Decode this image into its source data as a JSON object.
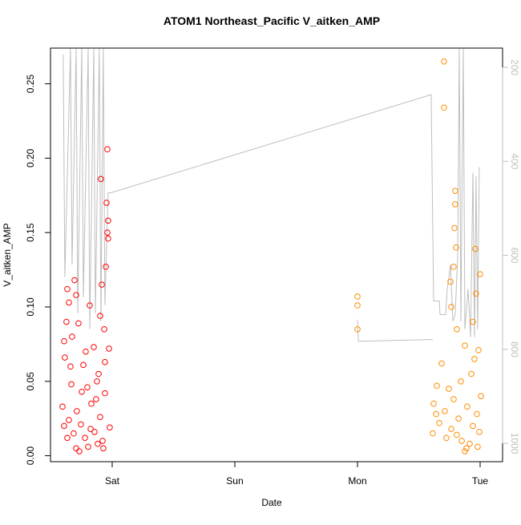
{
  "chart_data": {
    "type": "scatter",
    "title": "ATOM1 Northeast_Pacific V_aitken_AMP",
    "x_label": "Date",
    "y_label": "V_aitken_AMP",
    "xlim": [
      0.497,
      4.183
    ],
    "xticks": [
      {
        "value": 1,
        "label": "Sat"
      },
      {
        "value": 2,
        "label": "Sun"
      },
      {
        "value": 3,
        "label": "Mon"
      },
      {
        "value": 4,
        "label": "Tue"
      }
    ],
    "ylim": [
      -0.004,
      0.274
    ],
    "yticks": [
      {
        "value": 0,
        "label": "0.00"
      },
      0.05,
      {
        "value": 0.1,
        "label": "0.10"
      },
      0.15,
      {
        "value": 0.2,
        "label": "0.20"
      },
      0.25
    ],
    "y2lim": [
      1039,
      159
    ],
    "y2ticks": [
      200,
      400,
      600,
      800,
      1000
    ],
    "y2_color": "#bebebe",
    "series": [
      {
        "type": "scatter",
        "color": "#ff0000",
        "x": [
          0.961,
          0.908,
          0.954,
          0.967,
          0.961,
          0.967,
          0.948,
          0.915,
          0.634,
          0.693,
          0.647,
          0.706,
          0.817,
          0.902,
          0.627,
          0.725,
          0.935,
          0.608,
          0.673,
          0.85,
          0.974,
          0.614,
          0.765,
          0.889,
          0.667,
          0.797,
          0.941,
          0.595,
          0.712,
          0.83,
          0.869,
          0.647,
          0.745,
          0.902,
          0.608,
          0.686,
          0.778,
          0.856,
          0.922,
          0.706,
          0.804,
          0.882,
          0.928,
          0.732,
          0.634,
          0.824,
          0.98,
          0.752,
          0.66,
          0.941,
          0.784,
          0.876
        ],
        "values": [
          0.206,
          0.186,
          0.17,
          0.158,
          0.15,
          0.146,
          0.127,
          0.115,
          0.112,
          0.118,
          0.103,
          0.108,
          0.101,
          0.094,
          0.09,
          0.089,
          0.085,
          0.077,
          0.08,
          0.073,
          0.072,
          0.066,
          0.061,
          0.055,
          0.048,
          0.046,
          0.042,
          0.033,
          0.03,
          0.035,
          0.038,
          0.024,
          0.021,
          0.026,
          0.02,
          0.015,
          0.012,
          0.016,
          0.01,
          0.005,
          0.006,
          0.008,
          0.005,
          0.003,
          0.012,
          0.018,
          0.019,
          0.043,
          0.06,
          0.063,
          0.07,
          0.05
        ]
      },
      {
        "type": "scatter",
        "color": "#ff8c00",
        "x": [
          3.0,
          3.0,
          3.0,
          3.706,
          3.706,
          3.797,
          3.797,
          3.791,
          3.804,
          3.961,
          3.784,
          3.758,
          3.967,
          4.0,
          3.765,
          3.941,
          3.81,
          3.987,
          3.686,
          3.876,
          3.954,
          3.647,
          3.745,
          3.843,
          3.928,
          4.007,
          3.621,
          3.712,
          3.784,
          3.895,
          3.974,
          3.667,
          3.765,
          3.824,
          3.941,
          3.614,
          3.725,
          3.85,
          3.889,
          3.876,
          3.915,
          3.98,
          3.81,
          3.641,
          3.993
        ],
        "values": [
          0.107,
          0.101,
          0.085,
          0.265,
          0.234,
          0.178,
          0.169,
          0.153,
          0.14,
          0.139,
          0.127,
          0.117,
          0.109,
          0.122,
          0.1,
          0.09,
          0.085,
          0.071,
          0.062,
          0.074,
          0.065,
          0.047,
          0.045,
          0.05,
          0.055,
          0.04,
          0.035,
          0.03,
          0.038,
          0.033,
          0.028,
          0.022,
          0.018,
          0.025,
          0.02,
          0.015,
          0.012,
          0.01,
          0.005,
          0.003,
          0.008,
          0.006,
          0.014,
          0.028,
          0.016
        ]
      },
      {
        "type": "line",
        "axis": "y2",
        "color": "#bebebe",
        "x": [
          0.601,
          0.614,
          0.66,
          0.673,
          0.706,
          0.719,
          0.752,
          0.765,
          0.804,
          0.817,
          0.85,
          0.863,
          0.895,
          0.908,
          0.928,
          0.941,
          0.967,
          0.987,
          3.601,
          3.621,
          3.667,
          3.673,
          3.719,
          3.732,
          3.758,
          3.778,
          3.797,
          3.817,
          3.83,
          3.843,
          3.863,
          3.876,
          3.902,
          3.922,
          3.941,
          3.954,
          3.967,
          3.98,
          3.993,
          null,
          3.0,
          3.007,
          3.614
        ],
        "values": [
          173,
          646,
          160,
          620,
          160,
          723,
          160,
          689,
          160,
          757,
          160,
          723,
          160,
          740,
          160,
          706,
          467,
          467,
          258,
          697,
          697,
          726,
          726,
          672,
          620,
          740,
          726,
          603,
          160,
          740,
          160,
          757,
          672,
          774,
          424,
          774,
          432,
          757,
          412,
          null,
          737,
          783,
          779
        ]
      }
    ]
  }
}
